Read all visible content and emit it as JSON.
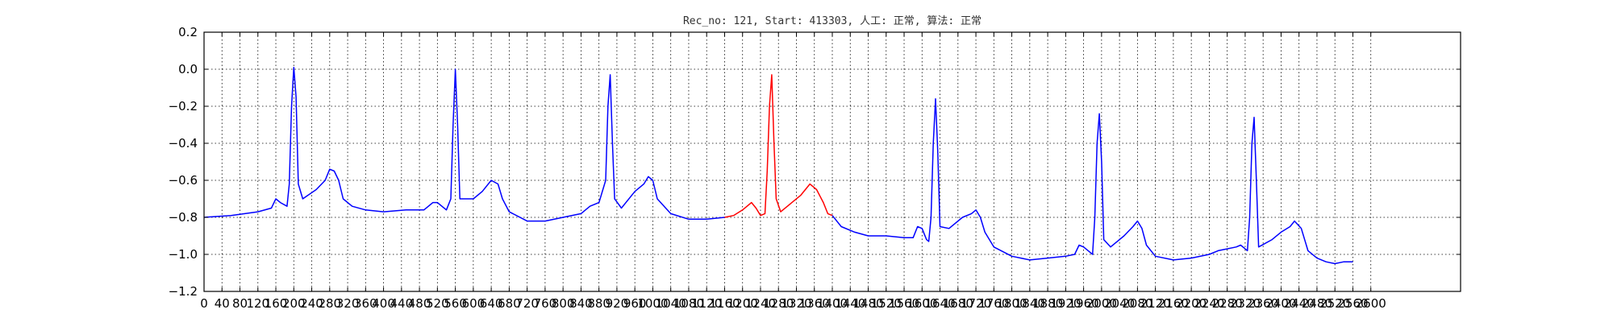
{
  "chart_data": {
    "type": "line",
    "title": "Rec_no: 121, Start: 413303, 人工: 正常, 算法: 正常",
    "xlabel": "",
    "ylabel": "",
    "xlim": [
      0,
      2800
    ],
    "ylim": [
      -1.2,
      0.2
    ],
    "grid": true,
    "x_ticks": [
      0,
      40,
      80,
      120,
      160,
      200,
      240,
      280,
      320,
      360,
      400,
      440,
      480,
      520,
      560,
      600,
      640,
      680,
      720,
      760,
      800,
      840,
      880,
      920,
      960,
      1000,
      1040,
      1080,
      1120,
      1160,
      1200,
      1240,
      1280,
      1320,
      1360,
      1400,
      1440,
      1480,
      1520,
      1560,
      1600,
      1640,
      1680,
      1720,
      1760,
      1800,
      1840,
      1880,
      1920,
      1960,
      2000,
      2040,
      2080,
      2120,
      2160,
      2200,
      2240,
      2280,
      2320,
      2360,
      2400,
      2440,
      2480,
      2520,
      2560,
      2600
    ],
    "y_ticks": [
      0.2,
      0.0,
      -0.2,
      -0.4,
      -0.6,
      -0.8,
      -1.0,
      -1.2
    ],
    "y_tick_labels": [
      "0.2",
      "0.0",
      "−0.2",
      "−0.4",
      "−0.6",
      "−0.8",
      "−1.0",
      "−1.2"
    ],
    "series": [
      {
        "color": "#0000ff",
        "points": [
          [
            0,
            -0.8
          ],
          [
            60,
            -0.79
          ],
          [
            120,
            -0.77
          ],
          [
            150,
            -0.75
          ],
          [
            160,
            -0.7
          ],
          [
            170,
            -0.72
          ],
          [
            185,
            -0.74
          ],
          [
            190,
            -0.62
          ],
          [
            195,
            -0.2
          ],
          [
            200,
            0.01
          ],
          [
            205,
            -0.15
          ],
          [
            210,
            -0.62
          ],
          [
            220,
            -0.7
          ],
          [
            250,
            -0.65
          ],
          [
            270,
            -0.6
          ],
          [
            280,
            -0.54
          ],
          [
            290,
            -0.55
          ],
          [
            300,
            -0.6
          ],
          [
            310,
            -0.7
          ],
          [
            330,
            -0.74
          ],
          [
            360,
            -0.76
          ],
          [
            400,
            -0.77
          ],
          [
            450,
            -0.76
          ],
          [
            490,
            -0.76
          ],
          [
            510,
            -0.72
          ],
          [
            520,
            -0.72
          ],
          [
            540,
            -0.76
          ],
          [
            550,
            -0.7
          ],
          [
            555,
            -0.3
          ],
          [
            560,
            0.0
          ],
          [
            565,
            -0.3
          ],
          [
            570,
            -0.7
          ],
          [
            600,
            -0.7
          ],
          [
            620,
            -0.66
          ],
          [
            640,
            -0.6
          ],
          [
            655,
            -0.62
          ],
          [
            665,
            -0.7
          ],
          [
            680,
            -0.77
          ],
          [
            720,
            -0.82
          ],
          [
            760,
            -0.82
          ],
          [
            800,
            -0.8
          ],
          [
            840,
            -0.78
          ],
          [
            860,
            -0.74
          ],
          [
            880,
            -0.72
          ],
          [
            895,
            -0.6
          ],
          [
            900,
            -0.2
          ],
          [
            905,
            -0.03
          ],
          [
            910,
            -0.4
          ],
          [
            915,
            -0.7
          ],
          [
            930,
            -0.75
          ],
          [
            960,
            -0.66
          ],
          [
            980,
            -0.62
          ],
          [
            990,
            -0.58
          ],
          [
            1000,
            -0.6
          ],
          [
            1010,
            -0.7
          ],
          [
            1040,
            -0.78
          ],
          [
            1080,
            -0.81
          ],
          [
            1120,
            -0.81
          ],
          [
            1160,
            -0.8
          ]
        ]
      },
      {
        "color": "#ff0000",
        "points": [
          [
            1160,
            -0.8
          ],
          [
            1180,
            -0.79
          ],
          [
            1200,
            -0.76
          ],
          [
            1220,
            -0.72
          ],
          [
            1230,
            -0.75
          ],
          [
            1240,
            -0.79
          ],
          [
            1250,
            -0.78
          ],
          [
            1255,
            -0.55
          ],
          [
            1260,
            -0.2
          ],
          [
            1265,
            -0.03
          ],
          [
            1270,
            -0.4
          ],
          [
            1275,
            -0.7
          ],
          [
            1285,
            -0.77
          ],
          [
            1310,
            -0.72
          ],
          [
            1330,
            -0.68
          ],
          [
            1350,
            -0.62
          ],
          [
            1365,
            -0.65
          ],
          [
            1380,
            -0.72
          ],
          [
            1390,
            -0.78
          ],
          [
            1400,
            -0.79
          ]
        ]
      },
      {
        "color": "#0000ff",
        "points": [
          [
            1400,
            -0.79
          ],
          [
            1420,
            -0.85
          ],
          [
            1450,
            -0.88
          ],
          [
            1480,
            -0.9
          ],
          [
            1520,
            -0.9
          ],
          [
            1560,
            -0.91
          ],
          [
            1580,
            -0.91
          ],
          [
            1590,
            -0.85
          ],
          [
            1600,
            -0.86
          ],
          [
            1610,
            -0.92
          ],
          [
            1615,
            -0.93
          ],
          [
            1620,
            -0.8
          ],
          [
            1625,
            -0.4
          ],
          [
            1630,
            -0.16
          ],
          [
            1635,
            -0.45
          ],
          [
            1640,
            -0.85
          ],
          [
            1660,
            -0.86
          ],
          [
            1690,
            -0.8
          ],
          [
            1710,
            -0.78
          ],
          [
            1720,
            -0.76
          ],
          [
            1730,
            -0.8
          ],
          [
            1740,
            -0.88
          ],
          [
            1760,
            -0.96
          ],
          [
            1800,
            -1.01
          ],
          [
            1840,
            -1.03
          ],
          [
            1880,
            -1.02
          ],
          [
            1920,
            -1.01
          ],
          [
            1940,
            -1.0
          ],
          [
            1950,
            -0.95
          ],
          [
            1960,
            -0.96
          ],
          [
            1970,
            -0.98
          ],
          [
            1980,
            -1.0
          ],
          [
            1985,
            -0.8
          ],
          [
            1990,
            -0.4
          ],
          [
            1995,
            -0.24
          ],
          [
            2000,
            -0.5
          ],
          [
            2005,
            -0.92
          ],
          [
            2020,
            -0.96
          ],
          [
            2050,
            -0.9
          ],
          [
            2070,
            -0.85
          ],
          [
            2080,
            -0.82
          ],
          [
            2090,
            -0.86
          ],
          [
            2100,
            -0.95
          ],
          [
            2120,
            -1.01
          ],
          [
            2160,
            -1.03
          ],
          [
            2200,
            -1.02
          ],
          [
            2240,
            -1.0
          ],
          [
            2260,
            -0.98
          ],
          [
            2280,
            -0.97
          ],
          [
            2300,
            -0.96
          ],
          [
            2310,
            -0.95
          ],
          [
            2320,
            -0.97
          ],
          [
            2325,
            -0.98
          ],
          [
            2330,
            -0.8
          ],
          [
            2335,
            -0.4
          ],
          [
            2340,
            -0.26
          ],
          [
            2345,
            -0.6
          ],
          [
            2350,
            -0.96
          ],
          [
            2380,
            -0.92
          ],
          [
            2400,
            -0.88
          ],
          [
            2420,
            -0.85
          ],
          [
            2430,
            -0.82
          ],
          [
            2445,
            -0.86
          ],
          [
            2460,
            -0.98
          ],
          [
            2480,
            -1.02
          ],
          [
            2500,
            -1.04
          ],
          [
            2520,
            -1.05
          ],
          [
            2540,
            -1.04
          ],
          [
            2560,
            -1.04
          ]
        ]
      }
    ]
  }
}
